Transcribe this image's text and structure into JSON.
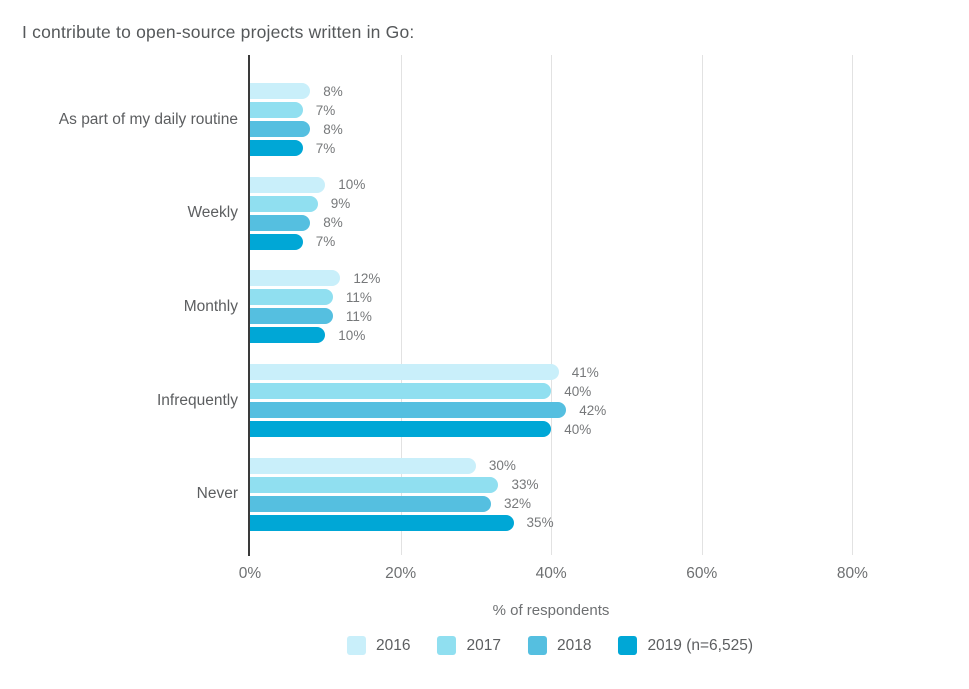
{
  "chart_data": {
    "type": "bar",
    "orientation": "horizontal",
    "title": "I contribute to open-source projects written in Go:",
    "categories": [
      "As part of my daily routine",
      "Weekly",
      "Monthly",
      "Infrequently",
      "Never"
    ],
    "series": [
      {
        "name": "2016",
        "color": "#C9EFFA",
        "values": [
          8,
          10,
          12,
          41,
          30
        ]
      },
      {
        "name": "2017",
        "color": "#90DFF0",
        "values": [
          7,
          9,
          11,
          40,
          33
        ]
      },
      {
        "name": "2018",
        "color": "#55BFE0",
        "values": [
          8,
          8,
          11,
          42,
          32
        ]
      },
      {
        "name": "2019 (n=6,525)",
        "color": "#00A7D6",
        "values": [
          7,
          7,
          10,
          40,
          35
        ]
      }
    ],
    "value_suffix": "%",
    "xlabel": "% of respondents",
    "x_ticks": [
      {
        "value": 0,
        "label": "0%"
      },
      {
        "value": 20,
        "label": "20%"
      },
      {
        "value": 40,
        "label": "40%"
      },
      {
        "value": 60,
        "label": "60%"
      },
      {
        "value": 80,
        "label": "80%"
      }
    ],
    "xlim": [
      0,
      94
    ],
    "grid": true,
    "legend_position": "bottom",
    "axis_color": "#3a3a3a",
    "gridline_color": "#e2e2e2",
    "text_color": "#5c5e60"
  }
}
